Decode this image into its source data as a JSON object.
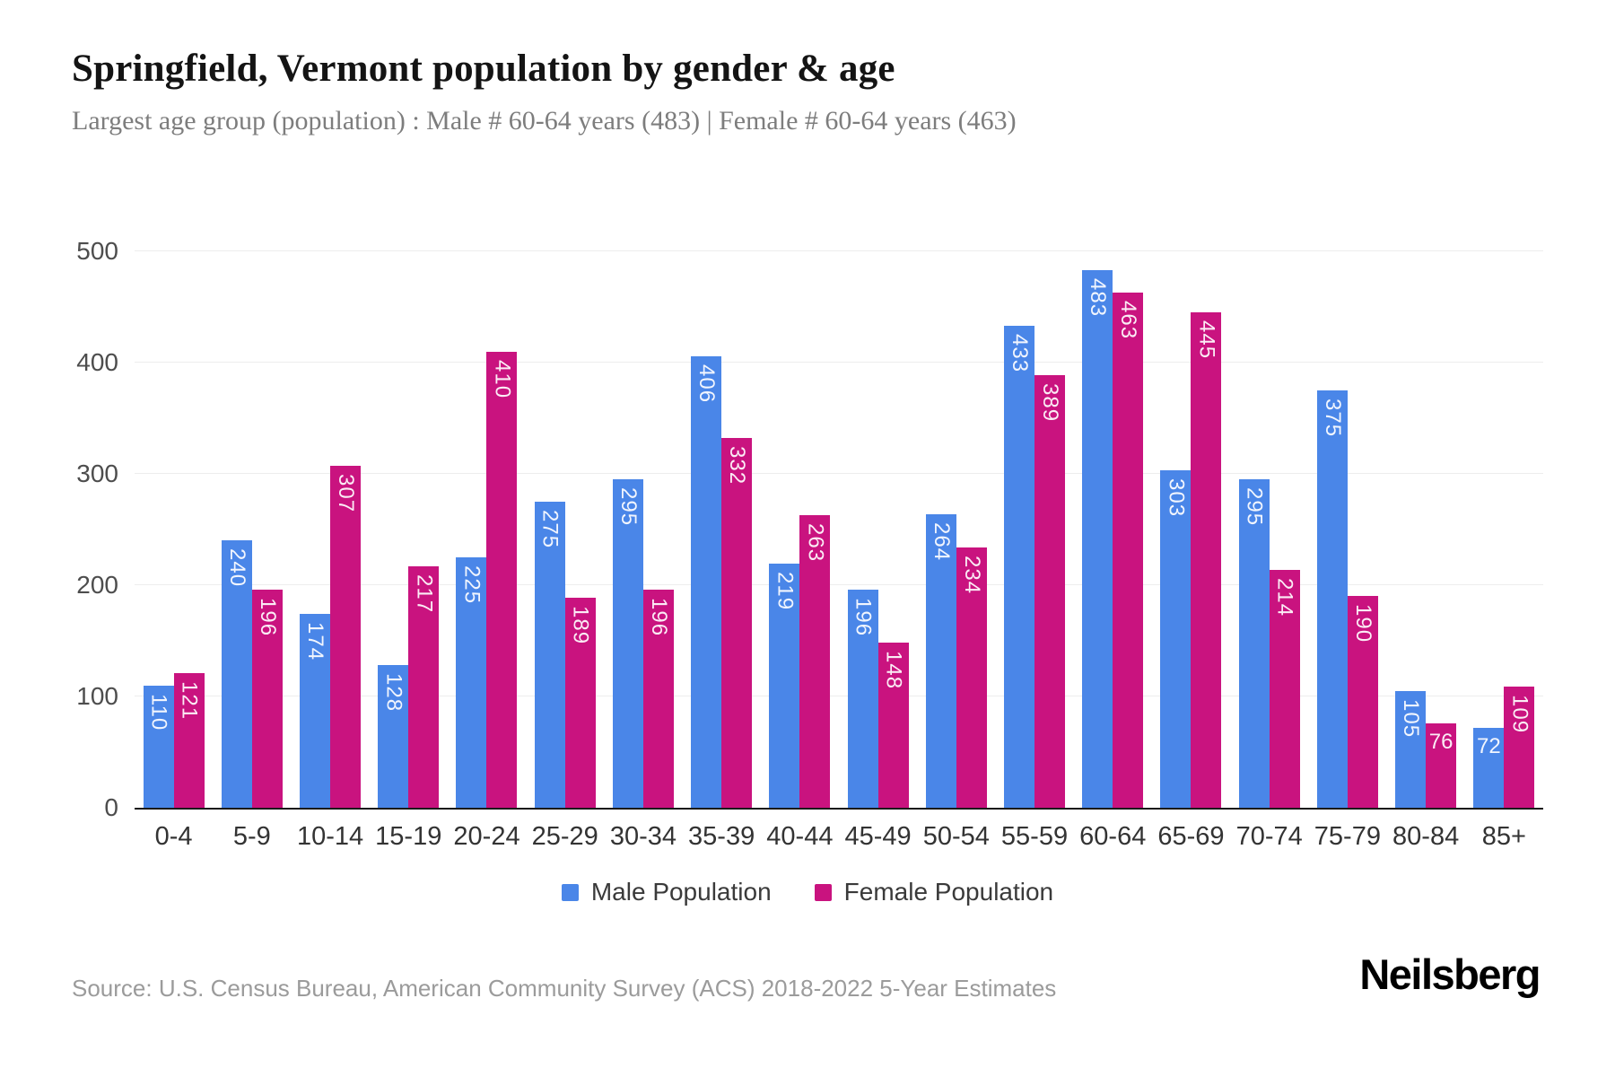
{
  "page": {
    "title": "Springfield, Vermont population by gender & age",
    "subtitle": "Largest age group (population) : Male # 60-64 years (483) | Female # 60-64 years (463)",
    "source": "Source: U.S. Census Bureau, American Community Survey (ACS) 2018-2022 5-Year Estimates",
    "brand": "Neilsberg"
  },
  "colors": {
    "male": "#4a86e8",
    "female": "#c9137f",
    "grid": "#ededed",
    "axis": "#1a1a1a",
    "bar_label": "#ffffff"
  },
  "chart_data": {
    "type": "bar",
    "title": "Springfield, Vermont population by gender & age",
    "categories": [
      "0-4",
      "5-9",
      "10-14",
      "15-19",
      "20-24",
      "25-29",
      "30-34",
      "35-39",
      "40-44",
      "45-49",
      "50-54",
      "55-59",
      "60-64",
      "65-69",
      "70-74",
      "75-79",
      "80-84",
      "85+"
    ],
    "series": [
      {
        "name": "Male Population",
        "color_key": "male",
        "values": [
          110,
          240,
          174,
          128,
          225,
          275,
          295,
          406,
          219,
          196,
          264,
          433,
          483,
          303,
          295,
          375,
          105,
          72
        ]
      },
      {
        "name": "Female Population",
        "color_key": "female",
        "values": [
          121,
          196,
          307,
          217,
          410,
          189,
          196,
          332,
          263,
          148,
          234,
          389,
          463,
          445,
          214,
          190,
          76,
          109
        ]
      }
    ],
    "xlabel": "",
    "ylabel": "",
    "ylim": [
      0,
      500
    ],
    "yticks": [
      0,
      100,
      200,
      300,
      400,
      500
    ],
    "grid": true,
    "legend_position": "bottom",
    "bar_value_labels": true
  }
}
